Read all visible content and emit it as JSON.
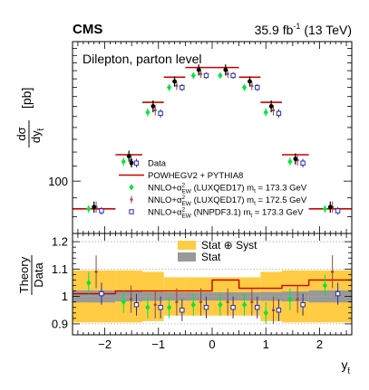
{
  "chart_data": {
    "type": "scatter",
    "header": {
      "experiment": "CMS",
      "lumi_value": "35.9 fb",
      "lumi_unit_exp": "-1",
      "energy": "(13 TeV)"
    },
    "annotation": "Dilepton, parton level",
    "x_label": {
      "main": "y",
      "sub": "t̄"
    },
    "y_label_top": {
      "main": "dσ",
      "den_main": "dy",
      "den_sub": "t̄",
      "unit": "[pb]"
    },
    "y_label_ratio": {
      "num": "Theory",
      "den": "Data"
    },
    "bins": [
      -2.6,
      -1.8,
      -1.3,
      -0.9,
      -0.5,
      0.0,
      0.5,
      0.9,
      1.3,
      1.8,
      2.6
    ],
    "x_range": [
      -2.6,
      2.6
    ],
    "x_ticks": [
      -2,
      -1,
      0,
      1,
      2
    ],
    "top": {
      "scale": "log",
      "y_range": [
        72,
        240
      ],
      "y_tick_labels": [
        {
          "value": 100,
          "label": "100"
        }
      ],
      "legend": [
        {
          "key": "data",
          "label": "Data"
        },
        {
          "key": "powheg",
          "label": "POWHEGV2 + PYTHIA8"
        },
        {
          "key": "n1",
          "text_a": "NNLO+α",
          "sup": "2",
          "sub": "EW",
          "text_b": " (LUXQED17) m",
          "m_sub": "t",
          "text_c": " = 173.3 GeV"
        },
        {
          "key": "n2",
          "text_a": "NNLO+α",
          "sup": "2",
          "sub": "EW",
          "text_b": " (LUXQED17) m",
          "m_sub": "t",
          "text_c": " = 172.5 GeV"
        },
        {
          "key": "n3",
          "text_a": "NNLO+α",
          "sup": "2",
          "sub": "EW",
          "text_b": " (NNPDF3.1) m",
          "m_sub": "t",
          "text_c": " = 173.3 GeV"
        }
      ],
      "data": [
        {
          "y": 85,
          "err": 3
        },
        {
          "y": 117,
          "err": 4
        },
        {
          "y": 160,
          "err": 6
        },
        {
          "y": 187,
          "err": 6
        },
        {
          "y": 201,
          "err": 7
        },
        {
          "y": 201,
          "err": 7
        },
        {
          "y": 187,
          "err": 6
        },
        {
          "y": 160,
          "err": 6
        },
        {
          "y": 115,
          "err": 4
        },
        {
          "y": 85,
          "err": 3
        }
      ],
      "powheg": [
        84,
        118,
        164,
        192,
        204,
        204,
        192,
        164,
        118,
        84
      ],
      "n1": [
        {
          "y": 84,
          "err": 2
        },
        {
          "y": 113,
          "err": 3
        },
        {
          "y": 154,
          "err": 4
        },
        {
          "y": 180,
          "err": 4
        },
        {
          "y": 194,
          "err": 4
        },
        {
          "y": 194,
          "err": 4
        },
        {
          "y": 180,
          "err": 4
        },
        {
          "y": 154,
          "err": 4
        },
        {
          "y": 113,
          "err": 3
        },
        {
          "y": 84,
          "err": 2
        }
      ],
      "n2": [
        {
          "y": 85,
          "err": 3
        },
        {
          "y": 114,
          "err": 4
        },
        {
          "y": 156,
          "err": 5
        },
        {
          "y": 182,
          "err": 5
        },
        {
          "y": 196,
          "err": 5
        },
        {
          "y": 196,
          "err": 5
        },
        {
          "y": 182,
          "err": 5
        },
        {
          "y": 156,
          "err": 5
        },
        {
          "y": 114,
          "err": 4
        },
        {
          "y": 85,
          "err": 3
        }
      ],
      "n3": [
        {
          "y": 83,
          "err": 2
        },
        {
          "y": 112,
          "err": 3
        },
        {
          "y": 153,
          "err": 4
        },
        {
          "y": 180,
          "err": 4
        },
        {
          "y": 194,
          "err": 4
        },
        {
          "y": 194,
          "err": 4
        },
        {
          "y": 180,
          "err": 4
        },
        {
          "y": 153,
          "err": 4
        },
        {
          "y": 112,
          "err": 3
        },
        {
          "y": 83,
          "err": 2
        }
      ]
    },
    "ratio": {
      "y_range": [
        0.86,
        1.23
      ],
      "y_ticks": [
        0.9,
        1,
        1.1,
        1.2
      ],
      "y_tick_labels": [
        "0.9",
        "1",
        "1.1",
        "1.2"
      ],
      "legend": [
        {
          "key": "statsyst",
          "label": "Stat ⊕ Syst"
        },
        {
          "key": "stat",
          "label": "Stat"
        }
      ],
      "band_statsyst": [
        0.095,
        0.095,
        0.09,
        0.07,
        0.07,
        0.07,
        0.07,
        0.09,
        0.095,
        0.095
      ],
      "band_stat": [
        0.022,
        0.018,
        0.016,
        0.015,
        0.015,
        0.015,
        0.015,
        0.016,
        0.018,
        0.022
      ],
      "powheg": [
        1.01,
        1.02,
        1.02,
        1.02,
        1.02,
        1.06,
        1.03,
        1.03,
        1.04,
        1.06
      ],
      "n1": [
        {
          "y": 1.05,
          "err": 0.04
        },
        {
          "y": 0.98,
          "err": 0.04
        },
        {
          "y": 0.96,
          "err": 0.04
        },
        {
          "y": 0.96,
          "err": 0.04
        },
        {
          "y": 0.97,
          "err": 0.04
        },
        {
          "y": 0.97,
          "err": 0.04
        },
        {
          "y": 0.97,
          "err": 0.04
        },
        {
          "y": 0.94,
          "err": 0.04
        },
        {
          "y": 0.99,
          "err": 0.04
        },
        {
          "y": 1.04,
          "err": 0.04
        }
      ],
      "n2": [
        {
          "y": 1.09,
          "err": 0.06
        },
        {
          "y": 0.99,
          "err": 0.05
        },
        {
          "y": 0.97,
          "err": 0.05
        },
        {
          "y": 0.98,
          "err": 0.05
        },
        {
          "y": 0.98,
          "err": 0.05
        },
        {
          "y": 0.98,
          "err": 0.05
        },
        {
          "y": 0.98,
          "err": 0.05
        },
        {
          "y": 0.95,
          "err": 0.05
        },
        {
          "y": 0.99,
          "err": 0.05
        },
        {
          "y": 1.09,
          "err": 0.06
        }
      ],
      "n3": [
        {
          "y": 1.01,
          "err": 0.04
        },
        {
          "y": 0.97,
          "err": 0.04
        },
        {
          "y": 0.96,
          "err": 0.04
        },
        {
          "y": 0.95,
          "err": 0.04
        },
        {
          "y": 0.96,
          "err": 0.04
        },
        {
          "y": 0.96,
          "err": 0.04
        },
        {
          "y": 0.96,
          "err": 0.04
        },
        {
          "y": 0.95,
          "err": 0.04
        },
        {
          "y": 0.97,
          "err": 0.04
        },
        {
          "y": 1.01,
          "err": 0.04
        }
      ]
    },
    "colors": {
      "data": "#000000",
      "powheg": "#cc0000",
      "n1": "#00e639",
      "n2": "#8b4a4a",
      "n3": "#2c2ca8",
      "statsyst": "#ffcc44",
      "stat": "#999999",
      "grid": "#aaaaaa"
    }
  }
}
